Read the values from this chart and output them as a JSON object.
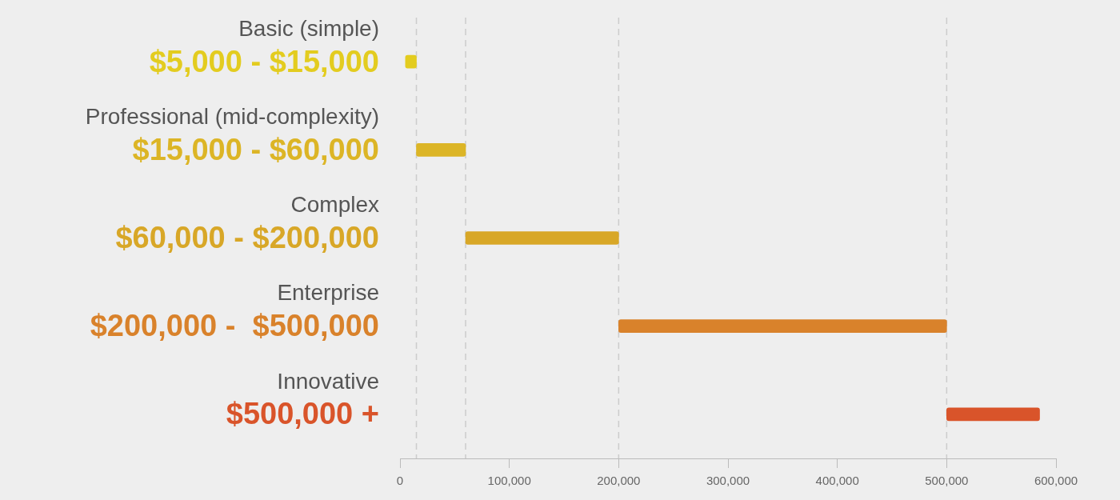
{
  "chart_data": {
    "type": "bar",
    "orientation": "horizontal",
    "categories": [
      "Basic (simple)",
      "Professional (mid-complexity)",
      "Complex",
      "Enterprise",
      "Innovative"
    ],
    "base": [
      5000,
      15000,
      60000,
      200000,
      500000
    ],
    "values": [
      10000,
      45000,
      140000,
      300000,
      85000
    ],
    "colors": [
      "#e3cc1f",
      "#dcb526",
      "#d8a727",
      "#d9822b",
      "#d9542a"
    ],
    "annotations": [
      "$5,000 - $15,000",
      "$15,000 - $60,000",
      "$60,000 - $200,000",
      "$200,000 -  $500,000",
      "$500,000 +"
    ],
    "xlim": [
      0,
      600000
    ],
    "xticks": [
      0,
      {
        "value": 100000,
        "label": "100,000"
      },
      {
        "value": 200000,
        "label": "200,000"
      },
      {
        "value": 300000,
        "label": "300,000"
      },
      {
        "value": 400000,
        "label": "400,000"
      },
      {
        "value": 500000,
        "label": "500,000"
      },
      {
        "value": 600000,
        "label": "600,000"
      }
    ],
    "ref_lines": [
      {
        "axis": "x",
        "value": 15000,
        "line_style": "dashed",
        "color": "#cccccc"
      },
      {
        "axis": "x",
        "value": 60000,
        "line_style": "dashed",
        "color": "#cccccc"
      },
      {
        "axis": "x",
        "value": 200000,
        "line_style": "dashed",
        "color": "#cccccc"
      },
      {
        "axis": "x",
        "value": 500000,
        "line_style": "dashed",
        "color": "#cccccc"
      }
    ],
    "legend": false
  }
}
